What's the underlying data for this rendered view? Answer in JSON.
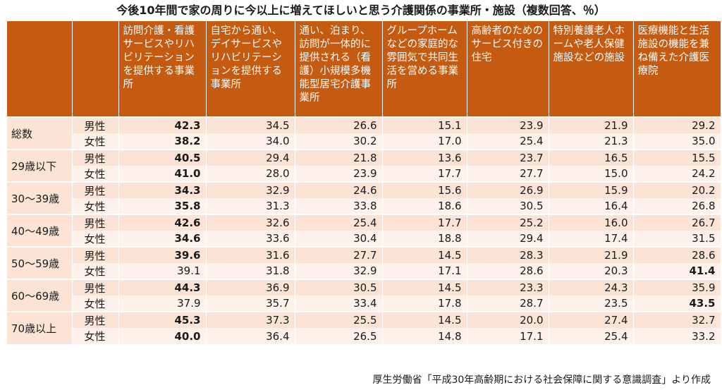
{
  "chart_data": {
    "type": "table",
    "title": "今後10年間で家の周りに今以上に増えてほしいと思う介護関係の事業所・施設（複数回答、％）",
    "columns": [
      "訪問介護・看護サービスやリハビリテーションを提供する事業所",
      "自宅から通い、デイサービスやリハビリテーションを提供する事業所",
      "通い、泊まり、訪問が一体的に提供される（看護）小規模多機能型居宅介護事業所",
      "グループホームなどの家庭的な雰囲気で共同生活を営める事業所",
      "高齢者のためのサービス付きの住宅",
      "特別養護老人ホームや老人保健施設などの施設",
      "医療機能と生活施設の機能を兼ね備えた介護医療院"
    ],
    "groups": [
      {
        "label": "総数",
        "rows": [
          {
            "sex": "男性",
            "values": [
              "42.3",
              "34.5",
              "26.6",
              "15.1",
              "23.9",
              "21.9",
              "29.2"
            ],
            "bold": [
              0
            ]
          },
          {
            "sex": "女性",
            "values": [
              "38.2",
              "34.0",
              "30.2",
              "17.0",
              "25.4",
              "21.3",
              "35.0"
            ],
            "bold": [
              0
            ]
          }
        ]
      },
      {
        "label": "29歳以下",
        "rows": [
          {
            "sex": "男性",
            "values": [
              "40.5",
              "29.4",
              "21.8",
              "13.6",
              "23.7",
              "16.5",
              "15.5"
            ],
            "bold": [
              0
            ]
          },
          {
            "sex": "女性",
            "values": [
              "41.0",
              "28.0",
              "23.9",
              "17.7",
              "27.7",
              "15.0",
              "24.2"
            ],
            "bold": [
              0
            ]
          }
        ]
      },
      {
        "label": "30～39歳",
        "rows": [
          {
            "sex": "男性",
            "values": [
              "34.3",
              "32.9",
              "24.6",
              "15.6",
              "26.9",
              "15.9",
              "20.2"
            ],
            "bold": [
              0
            ]
          },
          {
            "sex": "女性",
            "values": [
              "35.8",
              "31.3",
              "33.8",
              "18.6",
              "30.5",
              "16.4",
              "26.8"
            ],
            "bold": [
              0
            ]
          }
        ]
      },
      {
        "label": "40～49歳",
        "rows": [
          {
            "sex": "男性",
            "values": [
              "42.6",
              "32.6",
              "25.4",
              "17.7",
              "25.2",
              "16.0",
              "26.7"
            ],
            "bold": [
              0
            ]
          },
          {
            "sex": "女性",
            "values": [
              "34.6",
              "33.6",
              "30.4",
              "18.8",
              "29.4",
              "17.4",
              "31.5"
            ],
            "bold": [
              0
            ]
          }
        ]
      },
      {
        "label": "50～59歳",
        "rows": [
          {
            "sex": "男性",
            "values": [
              "39.6",
              "31.6",
              "27.7",
              "14.5",
              "28.3",
              "21.9",
              "28.6"
            ],
            "bold": [
              0
            ]
          },
          {
            "sex": "女性",
            "values": [
              "39.1",
              "31.8",
              "32.9",
              "17.1",
              "28.6",
              "20.3",
              "41.4"
            ],
            "bold": [
              6
            ]
          }
        ]
      },
      {
        "label": "60～69歳",
        "rows": [
          {
            "sex": "男性",
            "values": [
              "44.3",
              "36.9",
              "30.5",
              "14.5",
              "23.3",
              "24.3",
              "35.9"
            ],
            "bold": [
              0
            ]
          },
          {
            "sex": "女性",
            "values": [
              "37.9",
              "35.7",
              "33.4",
              "17.8",
              "28.7",
              "23.5",
              "43.5"
            ],
            "bold": [
              6
            ]
          }
        ]
      },
      {
        "label": "70歳以上",
        "rows": [
          {
            "sex": "男性",
            "values": [
              "45.3",
              "37.3",
              "25.5",
              "14.5",
              "20.0",
              "27.4",
              "32.7"
            ],
            "bold": [
              0
            ]
          },
          {
            "sex": "女性",
            "values": [
              "40.0",
              "36.4",
              "26.5",
              "14.8",
              "17.1",
              "25.4",
              "33.2"
            ],
            "bold": [
              0
            ]
          }
        ]
      }
    ],
    "source": "厚生労働省「平成30年高齢期における社会保障に関する意識調査」より作成"
  }
}
